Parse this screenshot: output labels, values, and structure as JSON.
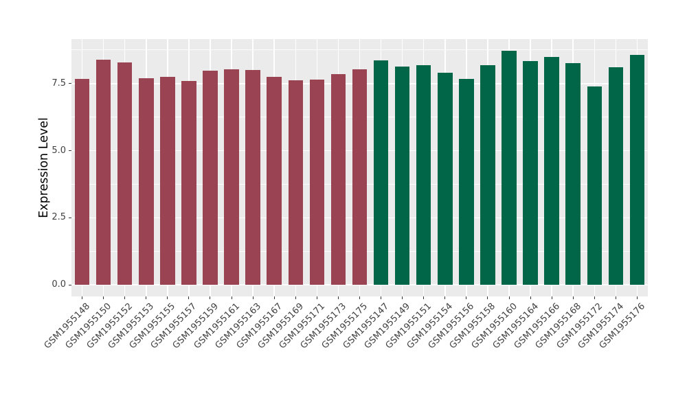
{
  "chart_data": {
    "type": "bar",
    "title": "",
    "xlabel": "",
    "ylabel": "Expression Level",
    "categories": [
      "GSM1955148",
      "GSM1955150",
      "GSM1955152",
      "GSM1955153",
      "GSM1955155",
      "GSM1955157",
      "GSM1955159",
      "GSM1955161",
      "GSM1955163",
      "GSM1955167",
      "GSM1955169",
      "GSM1955171",
      "GSM1955173",
      "GSM1955175",
      "GSM1955147",
      "GSM1955149",
      "GSM1955151",
      "GSM1955154",
      "GSM1955156",
      "GSM1955158",
      "GSM1955160",
      "GSM1955164",
      "GSM1955166",
      "GSM1955168",
      "GSM1955172",
      "GSM1955174",
      "GSM1955176"
    ],
    "values": [
      7.67,
      8.4,
      8.29,
      7.69,
      7.76,
      7.6,
      7.98,
      8.03,
      8.01,
      7.76,
      7.63,
      7.65,
      7.86,
      8.04,
      8.37,
      8.14,
      8.18,
      7.91,
      7.67,
      8.18,
      8.72,
      8.34,
      8.48,
      8.27,
      7.39,
      8.12,
      8.56
    ],
    "bar_groups": [
      "A",
      "A",
      "A",
      "A",
      "A",
      "A",
      "A",
      "A",
      "A",
      "A",
      "A",
      "A",
      "A",
      "A",
      "B",
      "B",
      "B",
      "B",
      "B",
      "B",
      "B",
      "B",
      "B",
      "B",
      "B",
      "B",
      "B"
    ],
    "group_colors": {
      "A": "#9A4453",
      "B": "#006647"
    },
    "ytick_labels": [
      "0.0",
      "2.5",
      "5.0",
      "7.5"
    ],
    "yticks": [
      0.0,
      2.5,
      5.0,
      7.5
    ],
    "minor_yticks": [
      1.25,
      3.75,
      6.25,
      8.75
    ],
    "ylim": [
      0,
      9.16
    ],
    "grid": true,
    "legend_position": "none",
    "panel_bg": "#EBEBEB",
    "grid_color": "#FFFFFF"
  }
}
